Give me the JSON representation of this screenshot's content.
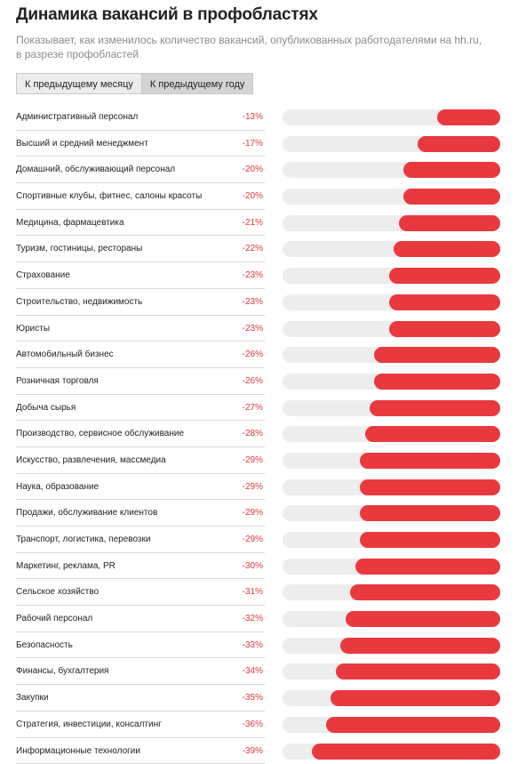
{
  "header": {
    "title": "Динамика вакансий в профобластях",
    "subtitle": "Показывает, как изменилось количество вакансий, опубликованных работодателями на hh.ru, в разрезе профобластей"
  },
  "tabs": [
    {
      "label": "К предыдущему месяцу",
      "active": false
    },
    {
      "label": "К предыдущему году",
      "active": true
    }
  ],
  "colors": {
    "bar": "#e8393f",
    "track": "#ededed",
    "value_text": "#e0383e"
  },
  "chart_data": {
    "type": "bar",
    "orientation": "horizontal",
    "unit": "%",
    "xlim": [
      -45,
      0
    ],
    "categories": [
      "Административный персонал",
      "Высший и средний менеджмент",
      "Домашний, обслуживающий персонал",
      "Спортивные клубы, фитнес, салоны красоты",
      "Медицина, фармацевтика",
      "Туризм, гостиницы, рестораны",
      "Страхование",
      "Строительство, недвижимость",
      "Юристы",
      "Автомобильный бизнес",
      "Розничная торговля",
      "Добыча сырья",
      "Производство, сервисное обслуживание",
      "Искусство, развлечения, массмедиа",
      "Наука, образование",
      "Продажи, обслуживание клиентов",
      "Транспорт, логистика, перевозки",
      "Маркетинг, реклама, PR",
      "Сельское хозяйство",
      "Рабочий персонал",
      "Безопасность",
      "Финансы, бухгалтерия",
      "Закупки",
      "Стратегия, инвестиции, консалтинг",
      "Информационные технологии"
    ],
    "values": [
      -13,
      -17,
      -20,
      -20,
      -21,
      -22,
      -23,
      -23,
      -23,
      -26,
      -26,
      -27,
      -28,
      -29,
      -29,
      -29,
      -29,
      -30,
      -31,
      -32,
      -33,
      -34,
      -35,
      -36,
      -39
    ],
    "value_labels": [
      "-13%",
      "-17%",
      "-20%",
      "-20%",
      "-21%",
      "-22%",
      "-23%",
      "-23%",
      "-23%",
      "-26%",
      "-26%",
      "-27%",
      "-28%",
      "-29%",
      "-29%",
      "-29%",
      "-29%",
      "-30%",
      "-31%",
      "-32%",
      "-33%",
      "-34%",
      "-35%",
      "-36%",
      "-39%"
    ]
  }
}
